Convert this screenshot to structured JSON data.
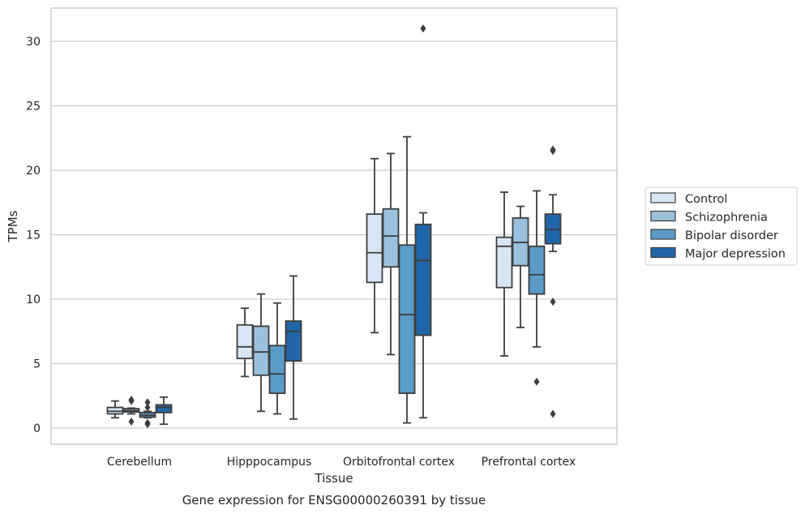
{
  "chart_data": {
    "type": "box",
    "xlabel": "Tissue",
    "ylabel": "TPMs",
    "caption": "Gene expression for ENSG00000260391 by tissue",
    "ylim": [
      -1.3,
      32.6
    ],
    "yticks": [
      "0",
      "5",
      "10",
      "15",
      "20",
      "25",
      "30"
    ],
    "grid": "horizontal",
    "legend_placement": "right",
    "categories": [
      "Cerebellum",
      "Hipppocampus",
      "Orbitofrontal cortex",
      "Prefrontal cortex"
    ],
    "series": [
      {
        "name": "Control",
        "color": "#d6e6f4",
        "boxes": [
          {
            "min": 0.8,
            "q1": 1.1,
            "median": 1.3,
            "q3": 1.6,
            "max": 2.1,
            "outliers": []
          },
          {
            "min": 4.0,
            "q1": 5.4,
            "median": 6.3,
            "q3": 8.0,
            "max": 9.3,
            "outliers": []
          },
          {
            "min": 7.4,
            "q1": 11.3,
            "median": 13.6,
            "q3": 16.6,
            "max": 20.9,
            "outliers": []
          },
          {
            "min": 5.6,
            "q1": 10.9,
            "median": 14.1,
            "q3": 14.8,
            "max": 18.3,
            "outliers": []
          }
        ]
      },
      {
        "name": "Schizophrenia",
        "color": "#9ac0dd",
        "boxes": [
          {
            "min": 1.1,
            "q1": 1.25,
            "median": 1.35,
            "q3": 1.5,
            "max": 1.55,
            "outliers": [
              2.1,
              2.2,
              0.5
            ]
          },
          {
            "min": 1.3,
            "q1": 4.1,
            "median": 5.9,
            "q3": 7.9,
            "max": 10.4,
            "outliers": []
          },
          {
            "min": 5.7,
            "q1": 12.5,
            "median": 14.9,
            "q3": 17.0,
            "max": 21.3,
            "outliers": []
          },
          {
            "min": 7.8,
            "q1": 12.6,
            "median": 14.4,
            "q3": 16.3,
            "max": 17.2,
            "outliers": []
          }
        ]
      },
      {
        "name": "Bipolar disorder",
        "color": "#5a9bc7",
        "boxes": [
          {
            "min": 0.8,
            "q1": 0.85,
            "median": 1.0,
            "q3": 1.2,
            "max": 1.3,
            "outliers": [
              2.0,
              1.6,
              0.4,
              0.3
            ]
          },
          {
            "min": 1.1,
            "q1": 2.7,
            "median": 4.2,
            "q3": 6.4,
            "max": 9.7,
            "outliers": []
          },
          {
            "min": 0.4,
            "q1": 2.7,
            "median": 8.8,
            "q3": 14.2,
            "max": 22.6,
            "outliers": []
          },
          {
            "min": 6.3,
            "q1": 10.4,
            "median": 11.9,
            "q3": 14.1,
            "max": 18.4,
            "outliers": [
              3.6
            ]
          }
        ]
      },
      {
        "name": "Major depression",
        "color": "#2166a8",
        "boxes": [
          {
            "min": 0.3,
            "q1": 1.2,
            "median": 1.6,
            "q3": 1.8,
            "max": 2.4,
            "outliers": []
          },
          {
            "min": 0.7,
            "q1": 5.2,
            "median": 7.5,
            "q3": 8.3,
            "max": 11.8,
            "outliers": []
          },
          {
            "min": 0.8,
            "q1": 7.2,
            "median": 13.0,
            "q3": 15.8,
            "max": 16.7,
            "outliers": [
              31.0
            ]
          },
          {
            "min": 13.7,
            "q1": 14.3,
            "median": 15.4,
            "q3": 16.6,
            "max": 18.1,
            "outliers": [
              21.6,
              21.5,
              9.8,
              1.1
            ]
          }
        ]
      }
    ]
  }
}
